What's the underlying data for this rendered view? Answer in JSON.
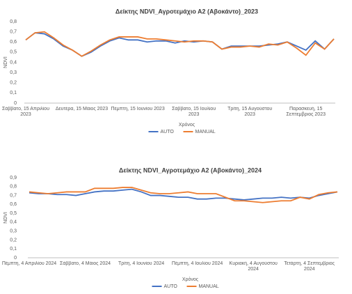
{
  "chart_data": [
    {
      "type": "line",
      "title": "Δείκτης NDVI_Αγροτεμάχιο Α2 (Αβοκάντο)_2023",
      "x_label": "Χρόνος",
      "y_label": "NDVI",
      "categories": [
        "Σάββατο, 15 Απριλίου 2023",
        null,
        null,
        null,
        null,
        null,
        "Δευτέρα, 15 Μάιος 2023",
        null,
        null,
        null,
        null,
        null,
        "Πέμπτη, 15 Ιουνίου 2023",
        null,
        null,
        null,
        null,
        null,
        "Σάββατο, 15 Ιουλίου 2023",
        null,
        null,
        null,
        null,
        null,
        "Τρίτη, 15 Αυγούστου 2023",
        null,
        null,
        null,
        null,
        null,
        "Παρασκευή, 15 Σεπτεμβριος 2023",
        null,
        null,
        null
      ],
      "series": [
        {
          "name": "AUTO",
          "color": "#4472c4",
          "values": [
            0.62,
            0.69,
            0.68,
            0.63,
            0.56,
            0.52,
            0.46,
            0.5,
            0.56,
            0.61,
            0.64,
            0.62,
            0.62,
            0.6,
            0.61,
            0.61,
            0.59,
            0.61,
            0.6,
            0.61,
            0.6,
            0.53,
            0.56,
            0.56,
            0.56,
            0.56,
            0.57,
            0.58,
            0.6,
            0.56,
            0.52,
            0.61,
            0.53,
            0.63
          ]
        },
        {
          "name": "MANUAL",
          "color": "#ed7d31",
          "values": [
            0.62,
            0.69,
            0.7,
            0.64,
            0.57,
            0.52,
            0.46,
            0.51,
            0.57,
            0.62,
            0.65,
            0.65,
            0.65,
            0.63,
            0.63,
            0.62,
            0.61,
            0.6,
            0.61,
            0.61,
            0.6,
            0.53,
            0.55,
            0.55,
            0.56,
            0.55,
            0.58,
            0.57,
            0.6,
            0.54,
            0.47,
            0.59,
            0.53,
            0.63
          ]
        }
      ],
      "ylim": [
        0,
        0.8
      ],
      "yticks": [
        0,
        {
          "value": 0.1,
          "label": "0,1"
        },
        {
          "value": 0.2,
          "label": "0,2"
        },
        {
          "value": 0.3,
          "label": "0,3"
        },
        {
          "value": 0.4,
          "label": "0,4"
        },
        {
          "value": 0.5,
          "label": "0,5"
        },
        {
          "value": 0.6,
          "label": "0,6"
        },
        {
          "value": 0.7,
          "label": "0,7"
        },
        {
          "value": 0.8,
          "label": "0,8"
        }
      ],
      "grid": false
    },
    {
      "type": "line",
      "title": "Δείκτης NDVI_Αγροτεμάχιο Α2 (Αβοκάντο)_2024",
      "x_label": "Χρόνος",
      "y_label": "NDVI",
      "categories": [
        "Πέμπτη, 4 Απριλίου 2024",
        null,
        null,
        null,
        null,
        null,
        "Σάββατο, 4 Μάιος 2024",
        null,
        null,
        null,
        null,
        null,
        "Τρίτη, 4 Ιουνίου 2024",
        null,
        null,
        null,
        null,
        null,
        "Πέμπτη, 4 Ιουλίου 2024",
        null,
        null,
        null,
        null,
        null,
        "Κυριακή, 4 Αυγούστου 2024",
        null,
        null,
        null,
        null,
        null,
        "Τετάρτη, 4 Σεπτεμβριος 2024",
        null,
        null,
        null
      ],
      "series": [
        {
          "name": "AUTO",
          "color": "#4472c4",
          "values": [
            0.73,
            0.72,
            0.72,
            0.71,
            0.71,
            0.7,
            0.72,
            0.74,
            0.75,
            0.75,
            0.76,
            0.77,
            0.74,
            0.7,
            0.7,
            0.69,
            0.68,
            0.68,
            0.66,
            0.66,
            0.67,
            0.67,
            0.66,
            0.65,
            0.66,
            0.67,
            0.67,
            0.68,
            0.67,
            0.68,
            0.67,
            0.7,
            0.72,
            0.74
          ]
        },
        {
          "name": "MANUAL",
          "color": "#ed7d31",
          "values": [
            0.74,
            0.73,
            0.72,
            0.73,
            0.74,
            0.74,
            0.74,
            0.78,
            0.78,
            0.78,
            0.79,
            0.79,
            0.76,
            0.73,
            0.72,
            0.72,
            0.73,
            0.74,
            0.72,
            0.72,
            0.72,
            0.68,
            0.64,
            0.64,
            0.63,
            0.62,
            0.63,
            0.64,
            0.64,
            0.68,
            0.66,
            0.71,
            0.73,
            0.74
          ]
        }
      ],
      "ylim": [
        0,
        0.9
      ],
      "yticks": [
        0,
        {
          "value": 0.1,
          "label": "0,1"
        },
        {
          "value": 0.2,
          "label": "0,2"
        },
        {
          "value": 0.3,
          "label": "0,3"
        },
        {
          "value": 0.4,
          "label": "0,4"
        },
        {
          "value": 0.5,
          "label": "0,5"
        },
        {
          "value": 0.6,
          "label": "0,6"
        },
        {
          "value": 0.7,
          "label": "0,7"
        },
        {
          "value": 0.8,
          "label": "0,8"
        },
        {
          "value": 0.9,
          "label": "0,9"
        }
      ],
      "grid": false
    }
  ]
}
